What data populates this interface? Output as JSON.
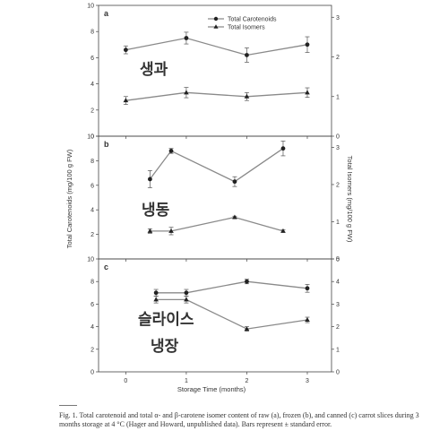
{
  "chart_data": {
    "type": "line",
    "xlabel": "Storage Time (months)",
    "ylabel_left": "Total Carotenoids (mg/100 g FW)",
    "ylabel_right": "Total Isomers (mg/100 g FW)",
    "x_ticks": [
      "0",
      "1",
      "2",
      "3"
    ],
    "xlim": [
      -0.45,
      3.4
    ],
    "legend": {
      "placement": "top-right",
      "entries": [
        {
          "label": "Total Carotenoids",
          "marker": "circle"
        },
        {
          "label": "Total Isomers",
          "marker": "triangle"
        }
      ]
    },
    "panels": [
      {
        "letter": "a",
        "annotation": "생과",
        "left_ticks": [
          "0",
          "2",
          "4",
          "6",
          "8",
          "10"
        ],
        "right_ticks": [
          "0",
          "1",
          "2",
          "3"
        ],
        "ylim_left": [
          0,
          10
        ],
        "ylim_right": [
          0,
          3.3
        ],
        "carotenoids": [
          {
            "x": 0,
            "y": 6.6,
            "err": 0.3
          },
          {
            "x": 1,
            "y": 7.5,
            "err": 0.45
          },
          {
            "x": 2,
            "y": 6.2,
            "err": 0.55
          },
          {
            "x": 3,
            "y": 7.0,
            "err": 0.6
          }
        ],
        "isomers": [
          {
            "x": 0,
            "y": 0.9,
            "err": 0.1
          },
          {
            "x": 1,
            "y": 1.1,
            "err": 0.13
          },
          {
            "x": 2,
            "y": 1.0,
            "err": 0.1
          },
          {
            "x": 3,
            "y": 1.1,
            "err": 0.12
          }
        ]
      },
      {
        "letter": "b",
        "annotation": "냉동",
        "left_ticks": [
          "2",
          "4",
          "6",
          "8",
          "10"
        ],
        "right_ticks": [
          "0",
          "1",
          "2",
          "3"
        ],
        "ylim_left": [
          0,
          10
        ],
        "ylim_right": [
          0,
          3.3
        ],
        "carotenoids": [
          {
            "x": 0.4,
            "y": 6.5,
            "err": 0.7
          },
          {
            "x": 0.75,
            "y": 8.8,
            "err": 0.2
          },
          {
            "x": 1.8,
            "y": 6.3,
            "err": 0.4
          },
          {
            "x": 2.6,
            "y": 9.0,
            "err": 0.6
          }
        ],
        "isomers": [
          {
            "x": 0.4,
            "y": 0.75,
            "err": 0.06
          },
          {
            "x": 0.75,
            "y": 0.75,
            "err": 0.1
          },
          {
            "x": 1.8,
            "y": 1.12,
            "err": 0.03
          },
          {
            "x": 2.6,
            "y": 0.75,
            "err": 0.03
          }
        ]
      },
      {
        "letter": "c",
        "annotation": "슬라이스\n냉장",
        "left_ticks": [
          "0",
          "2",
          "4",
          "6",
          "8",
          "10"
        ],
        "right_ticks": [
          "0",
          "1",
          "2",
          "3",
          "4",
          "5"
        ],
        "ylim_left": [
          0,
          10
        ],
        "ylim_right": [
          0,
          5
        ],
        "carotenoids": [
          {
            "x": 0.5,
            "y": 7.0,
            "err": 0.3
          },
          {
            "x": 1.0,
            "y": 7.0,
            "err": 0.3
          },
          {
            "x": 2.0,
            "y": 8.0,
            "err": 0.2
          },
          {
            "x": 3.0,
            "y": 7.4,
            "err": 0.35
          }
        ],
        "isomers": [
          {
            "x": 0.5,
            "y": 3.2,
            "err": 0.15
          },
          {
            "x": 1.0,
            "y": 3.2,
            "err": 0.15
          },
          {
            "x": 2.0,
            "y": 1.9,
            "err": 0.1
          },
          {
            "x": 3.0,
            "y": 2.3,
            "err": 0.12
          }
        ]
      }
    ]
  },
  "caption": {
    "text": "Fig. 1. Total carotenoid and total α- and β-carotene isomer content of raw (a), frozen (b), and canned (c) carrot slices during 3 months storage at 4 °C (Hager and Howard, unpublished data). Bars represent ± standard error."
  }
}
